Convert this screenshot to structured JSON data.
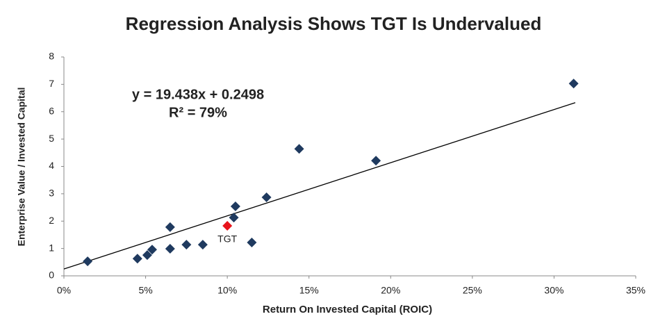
{
  "chart_data": {
    "type": "scatter",
    "title": "Regression Analysis Shows TGT Is Undervalued",
    "x_label": "Return On Invested Capital (ROIC)",
    "y_label": "Enterprise Value / Invested Capital",
    "annotations": [
      "y = 19.438x + 0.2498",
      "R² = 79%"
    ],
    "series": [
      {
        "color": "#1f3a5f",
        "x": [
          1.45,
          4.5,
          5.1,
          5.4,
          6.5,
          6.5,
          7.5,
          8.5,
          10.4,
          10.5,
          11.5,
          12.4,
          14.4,
          19.1,
          31.2
        ],
        "values": [
          0.53,
          0.63,
          0.76,
          0.96,
          0.99,
          1.78,
          1.14,
          1.14,
          2.13,
          2.54,
          1.22,
          2.87,
          4.64,
          4.21,
          7.03
        ]
      },
      {
        "name": "TGT",
        "color": "#e8141b",
        "x": [
          10.0
        ],
        "values": [
          1.83
        ]
      }
    ],
    "trendline": {
      "color": "#000000",
      "x": [
        0,
        31.3
      ],
      "values": [
        0.25,
        6.33
      ]
    },
    "xlim": [
      0,
      35
    ],
    "xticks": [
      {
        "value": 0,
        "label": "0%"
      },
      {
        "value": 5,
        "label": "5%"
      },
      {
        "value": 10,
        "label": "10%"
      },
      {
        "value": 15,
        "label": "15%"
      },
      {
        "value": 20,
        "label": "20%"
      },
      {
        "value": 25,
        "label": "25%"
      },
      {
        "value": 30,
        "label": "30%"
      },
      {
        "value": 35,
        "label": "35%"
      }
    ],
    "ylim": [
      0,
      8
    ],
    "yticks": [
      0,
      1,
      2,
      3,
      4,
      5,
      6,
      7,
      8
    ],
    "grid": false
  }
}
